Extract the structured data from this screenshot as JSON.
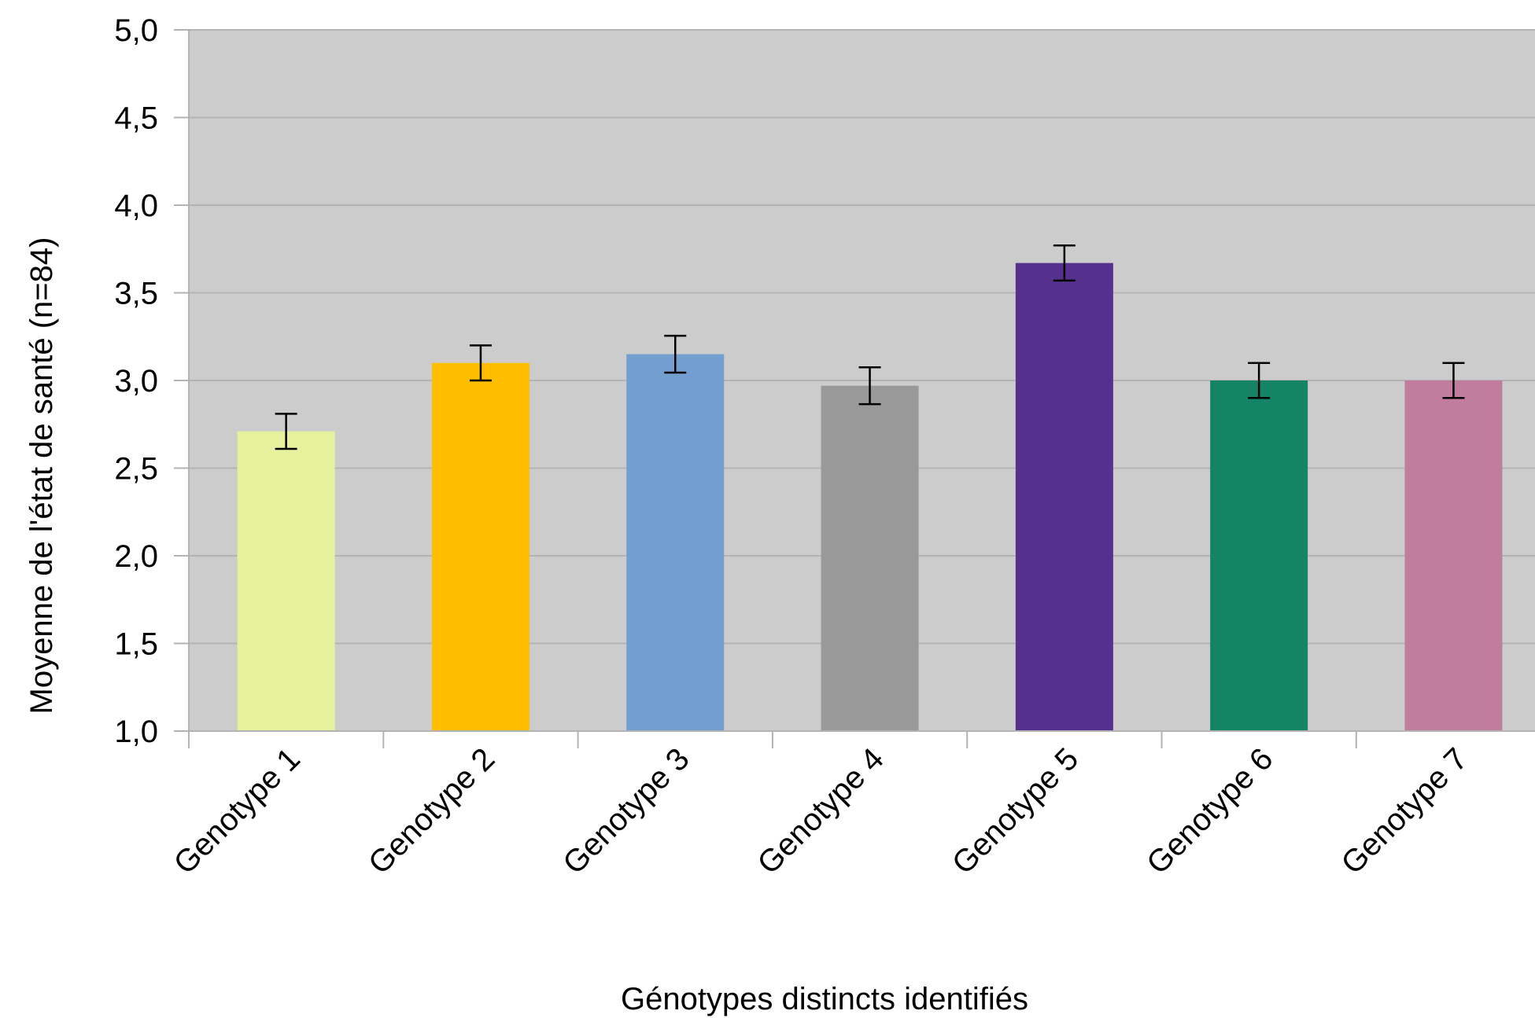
{
  "chart_data": {
    "type": "bar",
    "title": "",
    "xlabel": "Génotypes distincts identifiés",
    "ylabel": "Moyenne de l'état de santé (n=84)",
    "ylim": [
      1.0,
      5.0
    ],
    "ytick_step": 0.5,
    "ytick_labels": [
      "1,0",
      "1,5",
      "2,0",
      "2,5",
      "3,0",
      "3,5",
      "4,0",
      "4,5",
      "5,0"
    ],
    "grid": true,
    "categories": [
      "Genotype 1",
      "Genotype 2",
      "Genotype 3",
      "Genotype 4",
      "Genotype 5",
      "Genotype 6",
      "Genotype 7"
    ],
    "values": [
      2.71,
      3.1,
      3.15,
      2.97,
      3.67,
      3.0,
      3.0
    ],
    "error": [
      0.1,
      0.1,
      0.105,
      0.105,
      0.1,
      0.1,
      0.1
    ],
    "colors": [
      "#e6f19e",
      "#ffbf00",
      "#729fcf",
      "#999999",
      "#55308d",
      "#158466",
      "#c17d9e"
    ],
    "plot_background": "#cccccc"
  }
}
